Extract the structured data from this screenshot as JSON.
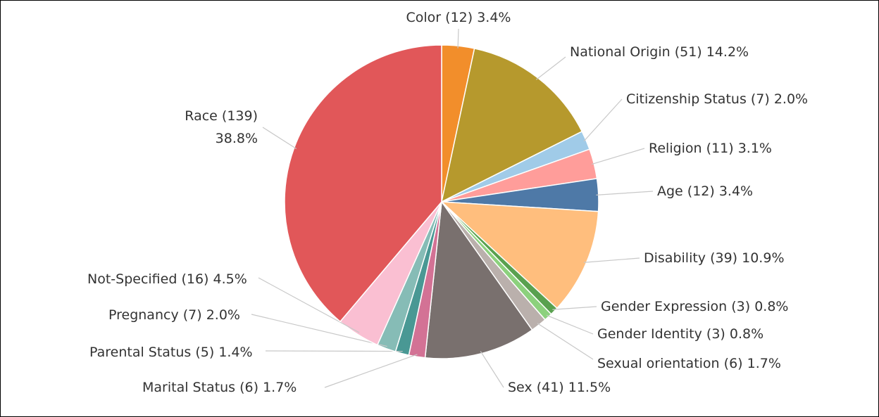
{
  "chart_data": {
    "type": "pie",
    "categories": [
      "Color",
      "National Origin",
      "Citizenship Status",
      "Religion",
      "Age",
      "Disability",
      "Gender Expression",
      "Gender Identity",
      "Sexual orientation",
      "Sex",
      "Marital Status",
      "Parental Status",
      "Pregnancy",
      "Not-Specified",
      "Race"
    ],
    "values": [
      12,
      51,
      7,
      11,
      12,
      39,
      3,
      3,
      6,
      41,
      6,
      5,
      7,
      16,
      139
    ],
    "value_labels": [
      "(12) 3.4%",
      "(51) 14.2%",
      "(7) 2.0%",
      "(11) 3.1%",
      "(12) 3.4%",
      "(39) 10.9%",
      "(3) 0.8%",
      "(3) 0.8%",
      "(6) 1.7%",
      "(41) 11.5%",
      "(6) 1.7%",
      "(5) 1.4%",
      "(7) 2.0%",
      "(16) 4.5%",
      "(139) 38.8%"
    ],
    "colors": [
      "#f28e2b",
      "#b6992d",
      "#a0cbe8",
      "#ff9d9a",
      "#4e79a7",
      "#ffbe7d",
      "#59a14f",
      "#8cd17d",
      "#bab0ac",
      "#79706e",
      "#d37295",
      "#499894",
      "#86bcb6",
      "#fabfd2",
      "#e15759"
    ]
  }
}
